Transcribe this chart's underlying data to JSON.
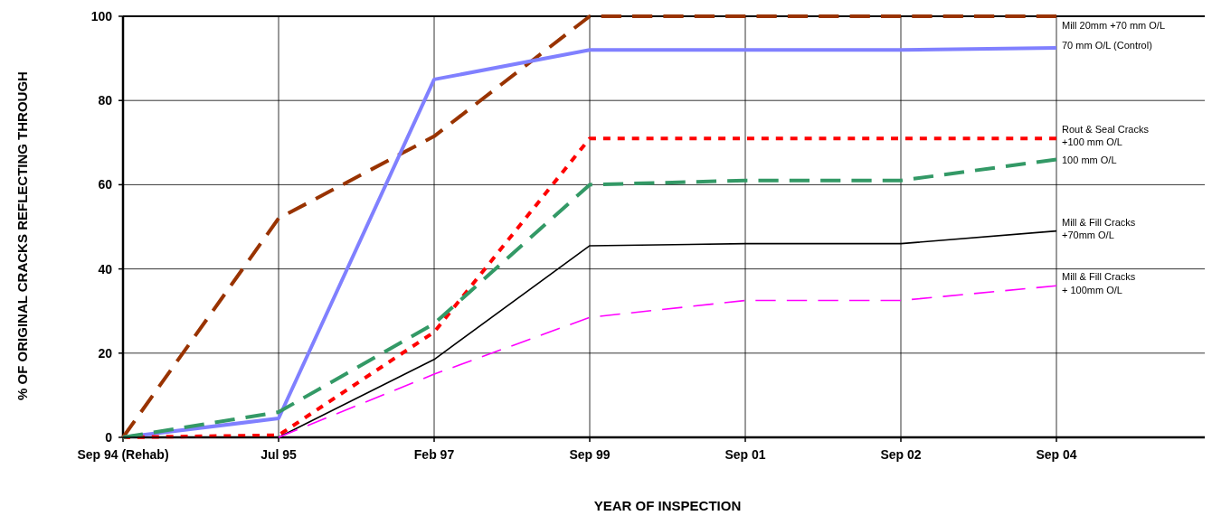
{
  "chart_data": {
    "type": "line",
    "xlabel": "YEAR OF INSPECTION",
    "ylabel": "% OF ORIGINAL CRACKS REFLECTING THROUGH",
    "categories": [
      "Sep 94 (Rehab)",
      "Jul 95",
      "Feb 97",
      "Sep 99",
      "Sep 01",
      "Sep 02",
      "Sep 04"
    ],
    "ylim": [
      0,
      100
    ],
    "yticks": [
      0,
      20,
      40,
      60,
      80,
      100
    ],
    "grid": true,
    "marker": "none",
    "series": [
      {
        "name": "Mill 20mm +70 mm O/L",
        "color": "#993300",
        "line_style": "dashed",
        "values": [
          0,
          52,
          71.5,
          100,
          100,
          100,
          100
        ]
      },
      {
        "name": "70 mm O/L (Control)",
        "color": "#8080ff",
        "line_style": "solid",
        "values": [
          0,
          4.5,
          85,
          92,
          92,
          92,
          92.5
        ]
      },
      {
        "name": "Rout & Seal Cracks +100 mm O/L",
        "color": "#ff0000",
        "line_style": "dotted",
        "values": [
          0,
          0.5,
          25,
          71,
          71,
          71,
          71
        ]
      },
      {
        "name": "100 mm O/L",
        "color": "#339966",
        "line_style": "dashed",
        "values": [
          0,
          6,
          27,
          60,
          61,
          61,
          66
        ]
      },
      {
        "name": "Mill & Fill Cracks +70mm O/L",
        "color": "#000000",
        "line_style": "solid",
        "values": [
          0,
          0,
          18.5,
          45.5,
          46,
          46,
          49
        ]
      },
      {
        "name": "Mill & Fill Cracks + 100mm O/L",
        "color": "#ff00ff",
        "line_style": "dashed",
        "values": [
          null,
          0,
          15,
          28.5,
          32.5,
          32.5,
          36
        ]
      }
    ]
  }
}
